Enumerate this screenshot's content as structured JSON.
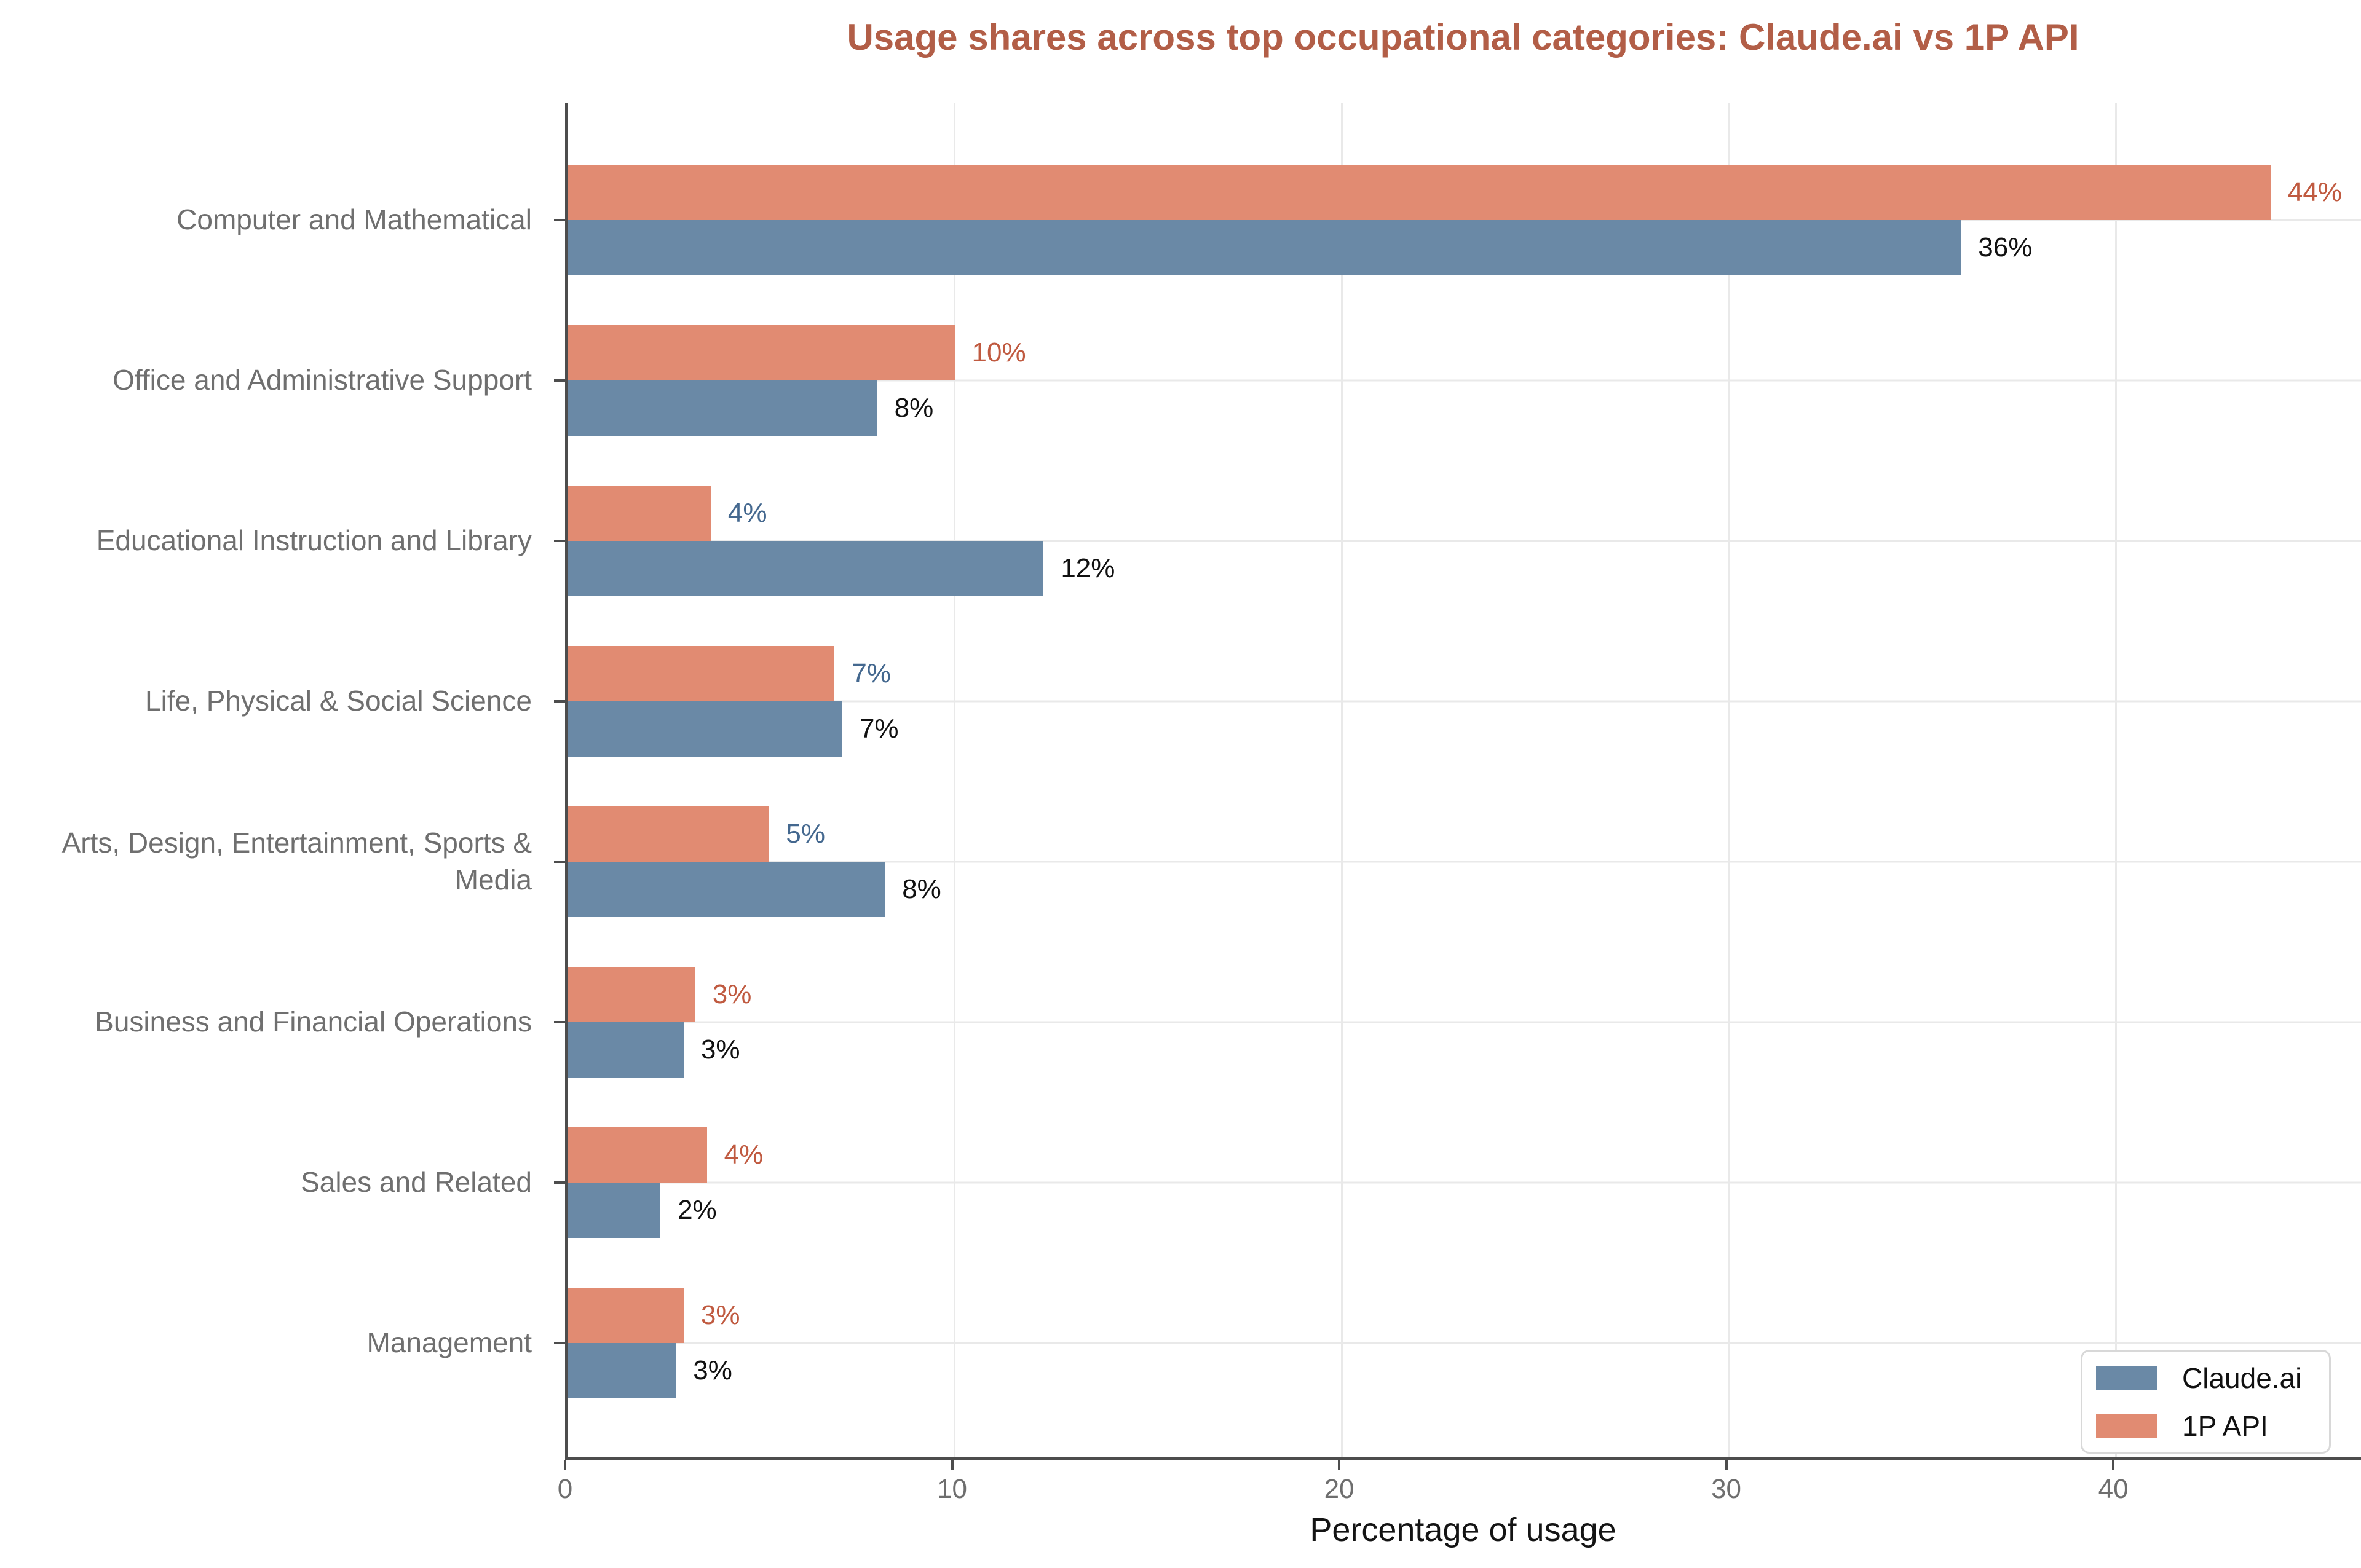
{
  "chart_data": {
    "type": "bar",
    "orientation": "horizontal",
    "title": "Usage shares across top occupational categories: Claude.ai vs 1P API",
    "xlabel": "Percentage of usage",
    "categories": [
      "Computer and Mathematical",
      "Office and Administrative Support",
      "Educational Instruction and Library",
      "Life, Physical & Social Science",
      "Arts, Design, Entertainment, Sports &\nMedia",
      "Business and Financial Operations",
      "Sales and Related",
      "Management"
    ],
    "series": [
      {
        "name": "Claude.ai",
        "color": "#6a89a6",
        "values": [
          36,
          8,
          12.3,
          7.1,
          8.2,
          3.0,
          2.4,
          2.8
        ],
        "labels": [
          "36%",
          "8%",
          "12%",
          "7%",
          "8%",
          "3%",
          "2%",
          "3%"
        ],
        "label_colors": [
          "#111111",
          "#111111",
          "#111111",
          "#111111",
          "#111111",
          "#111111",
          "#111111",
          "#111111"
        ]
      },
      {
        "name": "1P API",
        "color": "#e18b72",
        "values": [
          44,
          10,
          3.7,
          6.9,
          5.2,
          3.3,
          3.6,
          3.0
        ],
        "labels": [
          "44%",
          "10%",
          "4%",
          "7%",
          "5%",
          "3%",
          "4%",
          "3%"
        ],
        "label_colors": [
          "#c05a40",
          "#c05a40",
          "#44688f",
          "#44688f",
          "#44688f",
          "#c05a40",
          "#c05a40",
          "#c05a40"
        ]
      }
    ],
    "x_ticks": [
      "0",
      "10",
      "20",
      "30",
      "40"
    ],
    "x_tick_values": [
      0,
      10,
      20,
      30,
      40
    ],
    "xlim": [
      0,
      46.4
    ],
    "grid": true,
    "legend_position": "lower right",
    "colors": {
      "title": "#b25e47",
      "category_label": "#6f6f6f",
      "tick_label": "#6e6e6e",
      "axis": "#4d4d4d",
      "gridline": "#e9e9e9",
      "xlabel": "#141414"
    }
  }
}
